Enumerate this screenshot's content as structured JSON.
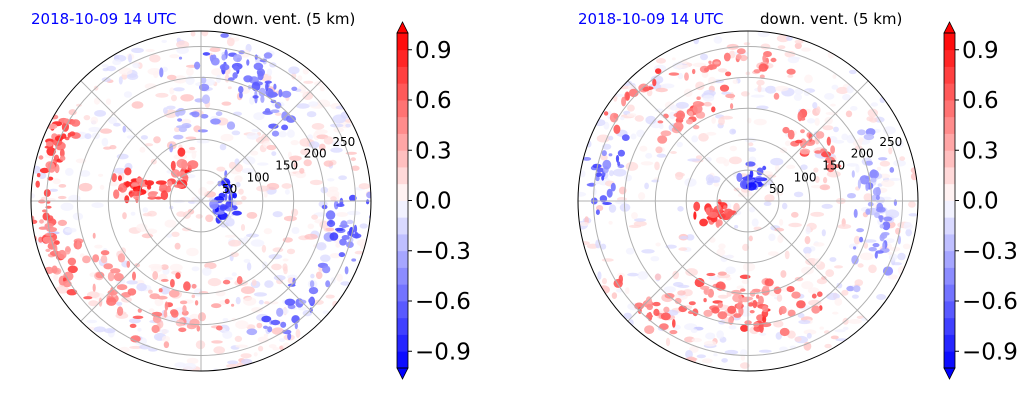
{
  "chart_data": [
    {
      "type": "heatmap",
      "projection": "polar",
      "date_label": "2018-10-09 14 UTC",
      "title": "down. vent. (5 km)",
      "radial_ticks": [
        50,
        100,
        150,
        200,
        250
      ],
      "radial_max": 275,
      "angular_grid_deg": 45,
      "grid": true,
      "colorbar": {
        "ticks": [
          0.9,
          0.6,
          0.3,
          0.0,
          -0.3,
          -0.6,
          -0.9
        ],
        "tick_labels": [
          "0.9",
          "0.6",
          "0.3",
          "0.0",
          "−0.3",
          "−0.6",
          "−0.9"
        ],
        "range": [
          -1.0,
          1.0
        ],
        "levels": 20,
        "extend": "both",
        "cmap": "bwr",
        "colors": {
          "negative": "#0000ff",
          "zero": "#ffffff",
          "positive": "#ff0000"
        }
      },
      "features": [
        {
          "r": 55,
          "theta": 120,
          "sr": 25,
          "st": 28,
          "v": 0.95,
          "n": 18
        },
        {
          "r": 100,
          "theta": 168,
          "sr": 45,
          "st": 12,
          "v": 0.9,
          "n": 45
        },
        {
          "r": 45,
          "theta": 20,
          "sr": 22,
          "st": 35,
          "v": -0.95,
          "n": 16
        },
        {
          "r": 40,
          "theta": 330,
          "sr": 20,
          "st": 25,
          "v": -0.9,
          "n": 14
        },
        {
          "r": 250,
          "theta": 160,
          "sr": 25,
          "st": 14,
          "v": 0.85,
          "n": 40
        },
        {
          "r": 250,
          "theta": 200,
          "sr": 22,
          "st": 18,
          "v": 0.75,
          "n": 45
        },
        {
          "r": 230,
          "theta": 80,
          "sr": 30,
          "st": 20,
          "v": -0.75,
          "n": 30
        },
        {
          "r": 200,
          "theta": 55,
          "sr": 35,
          "st": 18,
          "v": -0.65,
          "n": 30
        },
        {
          "r": 240,
          "theta": 350,
          "sr": 35,
          "st": 20,
          "v": -0.7,
          "n": 30
        },
        {
          "r": 235,
          "theta": 310,
          "sr": 30,
          "st": 18,
          "v": -0.7,
          "n": 25
        },
        {
          "r": 180,
          "theta": 260,
          "sr": 60,
          "st": 30,
          "v": 0.6,
          "n": 45
        },
        {
          "r": 200,
          "theta": 220,
          "sr": 50,
          "st": 25,
          "v": 0.5,
          "n": 30
        },
        {
          "r": 150,
          "theta": 100,
          "sr": 60,
          "st": 30,
          "v": -0.45,
          "n": 25
        }
      ]
    },
    {
      "type": "heatmap",
      "projection": "polar",
      "date_label": "2018-10-09 14 UTC",
      "title": "down. vent. (5 km)",
      "radial_ticks": [
        50,
        100,
        150,
        200,
        250
      ],
      "radial_max": 275,
      "angular_grid_deg": 45,
      "grid": true,
      "colorbar": {
        "ticks": [
          0.9,
          0.6,
          0.3,
          0.0,
          -0.3,
          -0.6,
          -0.9
        ],
        "tick_labels": [
          "0.9",
          "0.6",
          "0.3",
          "0.0",
          "−0.3",
          "−0.6",
          "−0.9"
        ],
        "range": [
          -1.0,
          1.0
        ],
        "levels": 20,
        "extend": "both",
        "cmap": "bwr",
        "colors": {
          "negative": "#0000ff",
          "zero": "#ffffff",
          "positive": "#ff0000"
        }
      },
      "features": [
        {
          "r": 40,
          "theta": 75,
          "sr": 25,
          "st": 30,
          "v": -0.95,
          "n": 22
        },
        {
          "r": 55,
          "theta": 205,
          "sr": 30,
          "st": 18,
          "v": 0.95,
          "n": 30
        },
        {
          "r": 170,
          "theta": 120,
          "sr": 25,
          "st": 30,
          "v": 0.7,
          "n": 25
        },
        {
          "r": 150,
          "theta": 45,
          "sr": 30,
          "st": 25,
          "v": 0.7,
          "n": 25
        },
        {
          "r": 220,
          "theta": 90,
          "sr": 30,
          "st": 30,
          "v": 0.6,
          "n": 25
        },
        {
          "r": 190,
          "theta": 280,
          "sr": 25,
          "st": 40,
          "v": 0.8,
          "n": 45
        },
        {
          "r": 150,
          "theta": 260,
          "sr": 30,
          "st": 30,
          "v": 0.7,
          "n": 30
        },
        {
          "r": 240,
          "theta": 170,
          "sr": 25,
          "st": 15,
          "v": -0.7,
          "n": 25
        },
        {
          "r": 250,
          "theta": 140,
          "sr": 20,
          "st": 20,
          "v": 0.8,
          "n": 15
        },
        {
          "r": 240,
          "theta": 230,
          "sr": 25,
          "st": 20,
          "v": 0.7,
          "n": 20
        },
        {
          "r": 200,
          "theta": 10,
          "sr": 40,
          "st": 30,
          "v": -0.5,
          "n": 30
        },
        {
          "r": 230,
          "theta": 340,
          "sr": 25,
          "st": 20,
          "v": -0.6,
          "n": 20
        }
      ]
    }
  ]
}
